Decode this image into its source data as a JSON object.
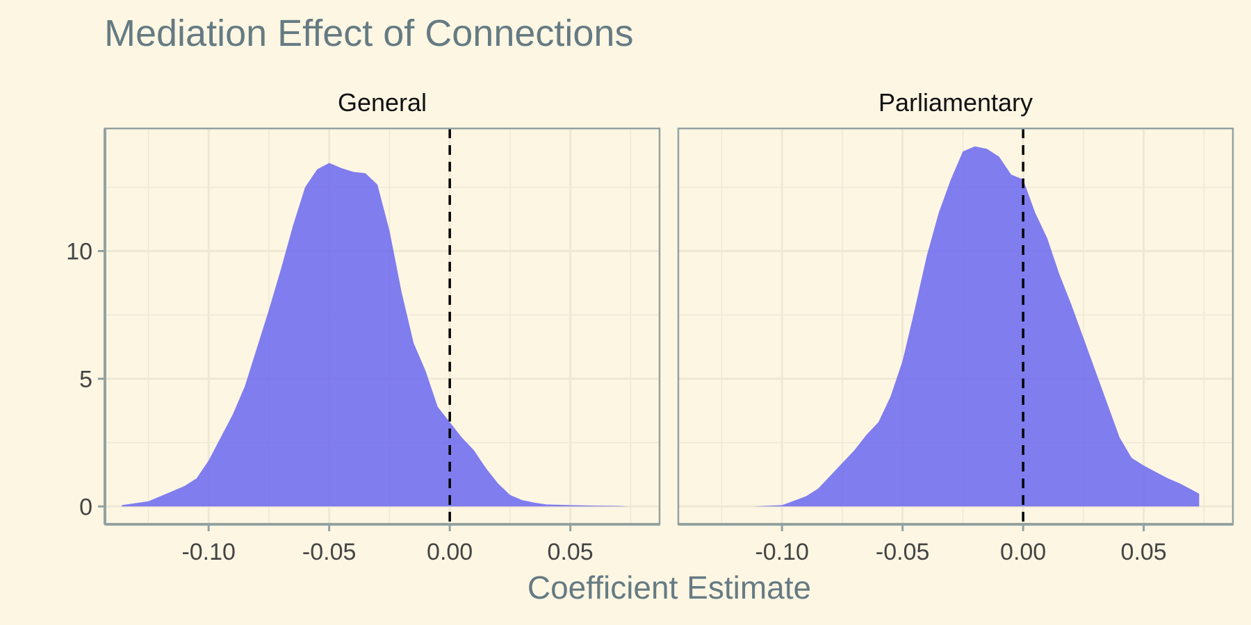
{
  "chart_data": {
    "type": "area",
    "title": "Mediation Effect of Connections",
    "xlabel": "Coefficient Estimate",
    "ylabel": "",
    "xlim": [
      -0.143,
      0.087
    ],
    "ylim": [
      -0.7,
      14.8
    ],
    "x_ticks": [
      "-0.10",
      "-0.05",
      "0.00",
      "0.05"
    ],
    "x_tick_values": [
      -0.1,
      -0.05,
      0.0,
      0.05
    ],
    "y_ticks": [
      "0",
      "5",
      "10"
    ],
    "y_tick_values": [
      0,
      5,
      10
    ],
    "reference_line": {
      "x": 0,
      "style": "dashed",
      "color": "#000000"
    },
    "fill_color": "#6a67f0",
    "grid": true,
    "facets": [
      {
        "name": "General",
        "x": [
          -0.136,
          -0.125,
          -0.115,
          -0.11,
          -0.105,
          -0.1,
          -0.095,
          -0.09,
          -0.085,
          -0.08,
          -0.075,
          -0.07,
          -0.065,
          -0.06,
          -0.055,
          -0.05,
          -0.045,
          -0.04,
          -0.035,
          -0.03,
          -0.025,
          -0.02,
          -0.015,
          -0.01,
          -0.005,
          0.0,
          0.005,
          0.01,
          0.015,
          0.02,
          0.025,
          0.03,
          0.035,
          0.04,
          0.05,
          0.06,
          0.07,
          0.074
        ],
        "y": [
          0.05,
          0.2,
          0.6,
          0.8,
          1.1,
          1.8,
          2.7,
          3.6,
          4.7,
          6.2,
          7.7,
          9.3,
          11.0,
          12.5,
          13.2,
          13.45,
          13.25,
          13.1,
          13.05,
          12.6,
          10.8,
          8.4,
          6.4,
          5.3,
          3.9,
          3.3,
          2.7,
          2.2,
          1.5,
          0.9,
          0.45,
          0.25,
          0.15,
          0.08,
          0.05,
          0.03,
          0.02,
          0.0
        ]
      },
      {
        "name": "Parliamentary",
        "x": [
          -0.112,
          -0.1,
          -0.09,
          -0.085,
          -0.08,
          -0.075,
          -0.07,
          -0.065,
          -0.06,
          -0.055,
          -0.05,
          -0.045,
          -0.04,
          -0.035,
          -0.03,
          -0.025,
          -0.02,
          -0.015,
          -0.01,
          -0.005,
          0.0,
          0.005,
          0.01,
          0.015,
          0.02,
          0.025,
          0.03,
          0.035,
          0.04,
          0.045,
          0.05,
          0.055,
          0.06,
          0.065,
          0.073
        ],
        "y": [
          0.0,
          0.05,
          0.4,
          0.7,
          1.2,
          1.7,
          2.2,
          2.8,
          3.3,
          4.3,
          5.7,
          7.7,
          9.8,
          11.5,
          12.8,
          13.9,
          14.1,
          14.0,
          13.7,
          13.0,
          12.8,
          11.5,
          10.5,
          9.1,
          7.9,
          6.6,
          5.3,
          4.0,
          2.7,
          1.9,
          1.6,
          1.35,
          1.1,
          0.9,
          0.5
        ]
      }
    ]
  }
}
